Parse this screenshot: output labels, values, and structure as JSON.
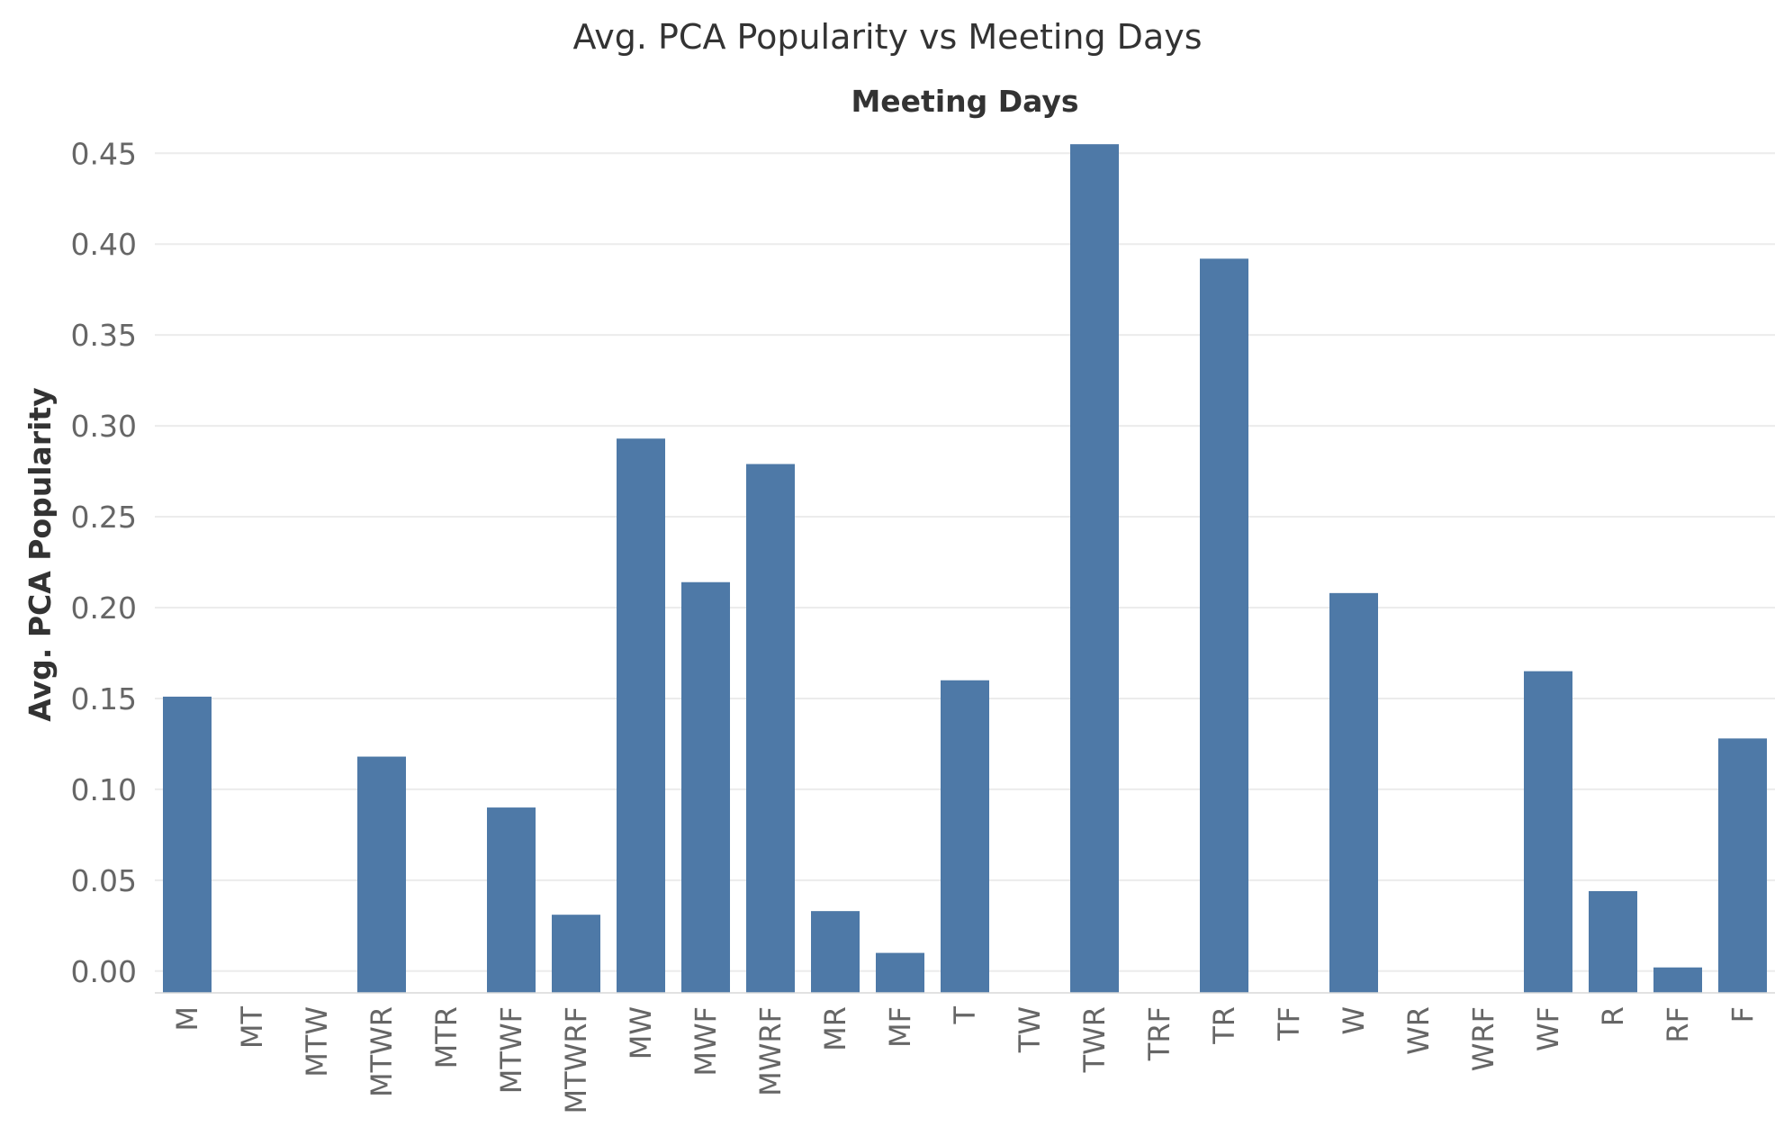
{
  "chart_data": {
    "type": "bar",
    "title": "Avg. PCA Popularity vs Meeting Days",
    "column_header": "Meeting Days",
    "ylabel": "Avg. PCA Popularity",
    "xlabel": "",
    "ylim": [
      -0.012,
      0.465
    ],
    "yticks": [
      "0.45",
      "0.40",
      "0.35",
      "0.30",
      "0.25",
      "0.20",
      "0.15",
      "0.10",
      "0.05",
      "0.00"
    ],
    "ytick_values": [
      0.45,
      0.4,
      0.35,
      0.3,
      0.25,
      0.2,
      0.15,
      0.1,
      0.05,
      0.0
    ],
    "categories": [
      "M",
      "MT",
      "MTW",
      "MTWR",
      "MTR",
      "MTWF",
      "MTWRF",
      "MW",
      "MWF",
      "MWRF",
      "MR",
      "MF",
      "T",
      "TW",
      "TWR",
      "TRF",
      "TR",
      "TF",
      "W",
      "WR",
      "WRF",
      "WF",
      "R",
      "RF",
      "F"
    ],
    "values": [
      0.151,
      -0.012,
      -0.012,
      0.118,
      -0.012,
      0.09,
      0.031,
      0.293,
      0.214,
      0.279,
      0.033,
      0.01,
      0.16,
      -0.012,
      0.455,
      -0.012,
      0.392,
      -0.012,
      0.208,
      -0.012,
      -0.012,
      0.165,
      0.044,
      0.002,
      0.128
    ],
    "bar_color": "#4e79a7",
    "grid": true,
    "legend": "none"
  }
}
